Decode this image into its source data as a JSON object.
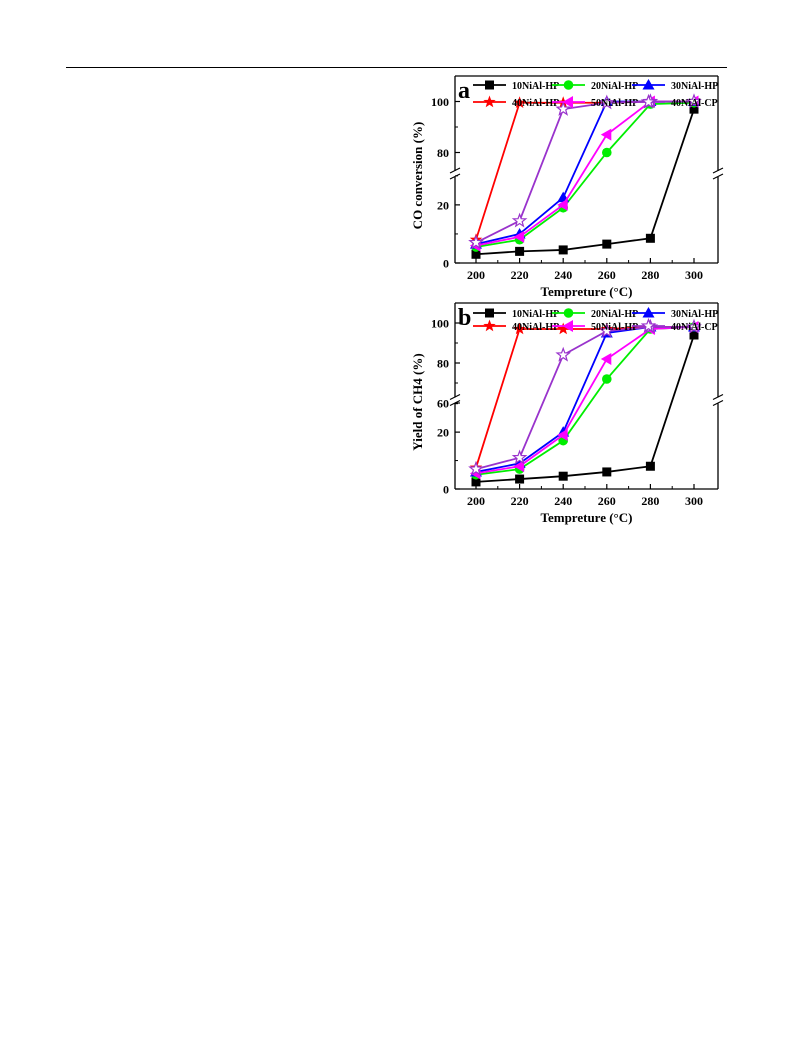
{
  "chart_data": [
    {
      "panel_label": "a",
      "type": "line",
      "xlabel": "Tempreture (°C)",
      "ylabel": "CO conversion (%)",
      "x": [
        200,
        220,
        240,
        260,
        280,
        300
      ],
      "x_ticks": [
        "200",
        "220",
        "240",
        "260",
        "280",
        "300"
      ],
      "y_ticks_lower": [
        "0",
        "20"
      ],
      "y_ticks_upper": [
        "80",
        "100"
      ],
      "ylim_lower": [
        0,
        32
      ],
      "ylim_upper": [
        70,
        110
      ],
      "axis_break": true,
      "legend_placement": "top",
      "series": [
        {
          "name": "10NiAl-HP",
          "color": "#000000",
          "marker": "square",
          "values": [
            3,
            4,
            4.5,
            6.5,
            8.5,
            97
          ]
        },
        {
          "name": "20NiAl-HP",
          "color": "#00ee00",
          "marker": "circle",
          "values": [
            5.5,
            8,
            19,
            80,
            99,
            99.5
          ]
        },
        {
          "name": "30NiAl-HP",
          "color": "#0000ff",
          "marker": "triangle",
          "values": [
            6.5,
            10,
            22.5,
            100,
            100,
            100
          ]
        },
        {
          "name": "40NiAl-HP",
          "color": "#ff0000",
          "marker": "star",
          "values": [
            8,
            99.5,
            99.5,
            99.5,
            100,
            100
          ]
        },
        {
          "name": "50NiAl-HP",
          "color": "#ff00ff",
          "marker": "triangle-left",
          "values": [
            6,
            9,
            20,
            87,
            100,
            100
          ]
        },
        {
          "name": "40NiAl-CP",
          "color": "#9933cc",
          "marker": "star-open",
          "values": [
            7,
            14.5,
            97,
            99.5,
            100,
            100
          ]
        }
      ]
    },
    {
      "panel_label": "b",
      "type": "line",
      "xlabel": "Tempreture (°C)",
      "ylabel": "Yield of CH4  (%)",
      "x": [
        200,
        220,
        240,
        260,
        280,
        300
      ],
      "x_ticks": [
        "200",
        "220",
        "240",
        "260",
        "280",
        "300"
      ],
      "y_ticks_lower": [
        "0",
        "20"
      ],
      "y_ticks_upper": [
        "60",
        "80",
        "100"
      ],
      "ylim_lower": [
        0,
        32
      ],
      "ylim_upper": [
        60,
        110
      ],
      "axis_break": true,
      "legend_placement": "top",
      "series": [
        {
          "name": "10NiAl-HP",
          "color": "#000000",
          "marker": "square",
          "values": [
            2.5,
            3.5,
            4.5,
            6,
            8,
            94
          ]
        },
        {
          "name": "20NiAl-HP",
          "color": "#00ee00",
          "marker": "circle",
          "values": [
            5,
            7,
            17,
            72,
            97,
            98
          ]
        },
        {
          "name": "30NiAl-HP",
          "color": "#0000ff",
          "marker": "triangle",
          "values": [
            6,
            9,
            20,
            95,
            98,
            98
          ]
        },
        {
          "name": "40NiAl-HP",
          "color": "#ff0000",
          "marker": "star",
          "values": [
            7.5,
            97,
            97,
            97,
            98,
            98
          ]
        },
        {
          "name": "50NiAl-HP",
          "color": "#ff00ff",
          "marker": "triangle-left",
          "values": [
            5.5,
            8,
            19,
            82,
            97,
            98
          ]
        },
        {
          "name": "40NiAl-CP",
          "color": "#9933cc",
          "marker": "star-open",
          "values": [
            7,
            11,
            84,
            96,
            98,
            98
          ]
        }
      ]
    }
  ]
}
